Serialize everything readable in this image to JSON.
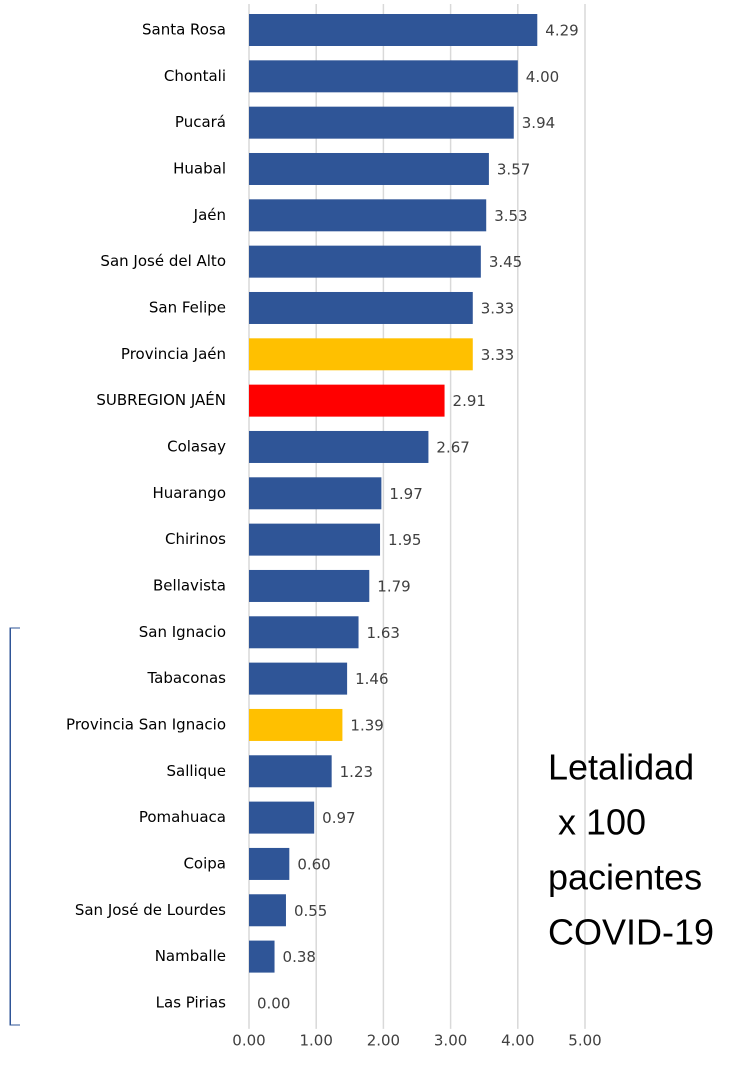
{
  "chart_data": {
    "type": "barh",
    "categories": [
      "Santa Rosa",
      "Chontali",
      "Pucará",
      "Huabal",
      "Jaén",
      "San José del Alto",
      "San Felipe",
      "Provincia Jaén",
      "SUBREGION JAÉN",
      "Colasay",
      "Huarango",
      "Chirinos",
      "Bellavista",
      "San Ignacio",
      "Tabaconas",
      "Provincia San Ignacio",
      "Sallique",
      "Pomahuaca",
      "Coipa",
      "San José de Lourdes",
      "Namballe",
      "Las Pirias"
    ],
    "values": [
      4.29,
      4.0,
      3.94,
      3.57,
      3.53,
      3.45,
      3.33,
      3.33,
      2.91,
      2.67,
      1.97,
      1.95,
      1.79,
      1.63,
      1.46,
      1.39,
      1.23,
      0.97,
      0.6,
      0.55,
      0.38,
      0.0
    ],
    "value_labels": [
      "4.29",
      "4.00",
      "3.94",
      "3.57",
      "3.53",
      "3.45",
      "3.33",
      "3.33",
      "2.91",
      "2.67",
      "1.97",
      "1.95",
      "1.79",
      "1.63",
      "1.46",
      "1.39",
      "1.23",
      "0.97",
      "0.60",
      "0.55",
      "0.38",
      "0.00"
    ],
    "colors": [
      "#2f5597",
      "#2f5597",
      "#2f5597",
      "#2f5597",
      "#2f5597",
      "#2f5597",
      "#2f5597",
      "#ffc000",
      "#ff0000",
      "#2f5597",
      "#2f5597",
      "#2f5597",
      "#2f5597",
      "#2f5597",
      "#2f5597",
      "#ffc000",
      "#2f5597",
      "#2f5597",
      "#2f5597",
      "#2f5597",
      "#2f5597",
      "#2f5597"
    ],
    "xlim": [
      0,
      5
    ],
    "xticks": [
      {
        "value": 0,
        "label": "0.00"
      },
      {
        "value": 1,
        "label": "1.00"
      },
      {
        "value": 2,
        "label": "2.00"
      },
      {
        "value": 3,
        "label": "3.00"
      },
      {
        "value": 4,
        "label": "4.00"
      },
      {
        "value": 5,
        "label": "5.00"
      }
    ],
    "grid": true,
    "annotation": [
      "Letalidad",
      " x 100",
      "pacientes",
      "COVID-19"
    ]
  }
}
